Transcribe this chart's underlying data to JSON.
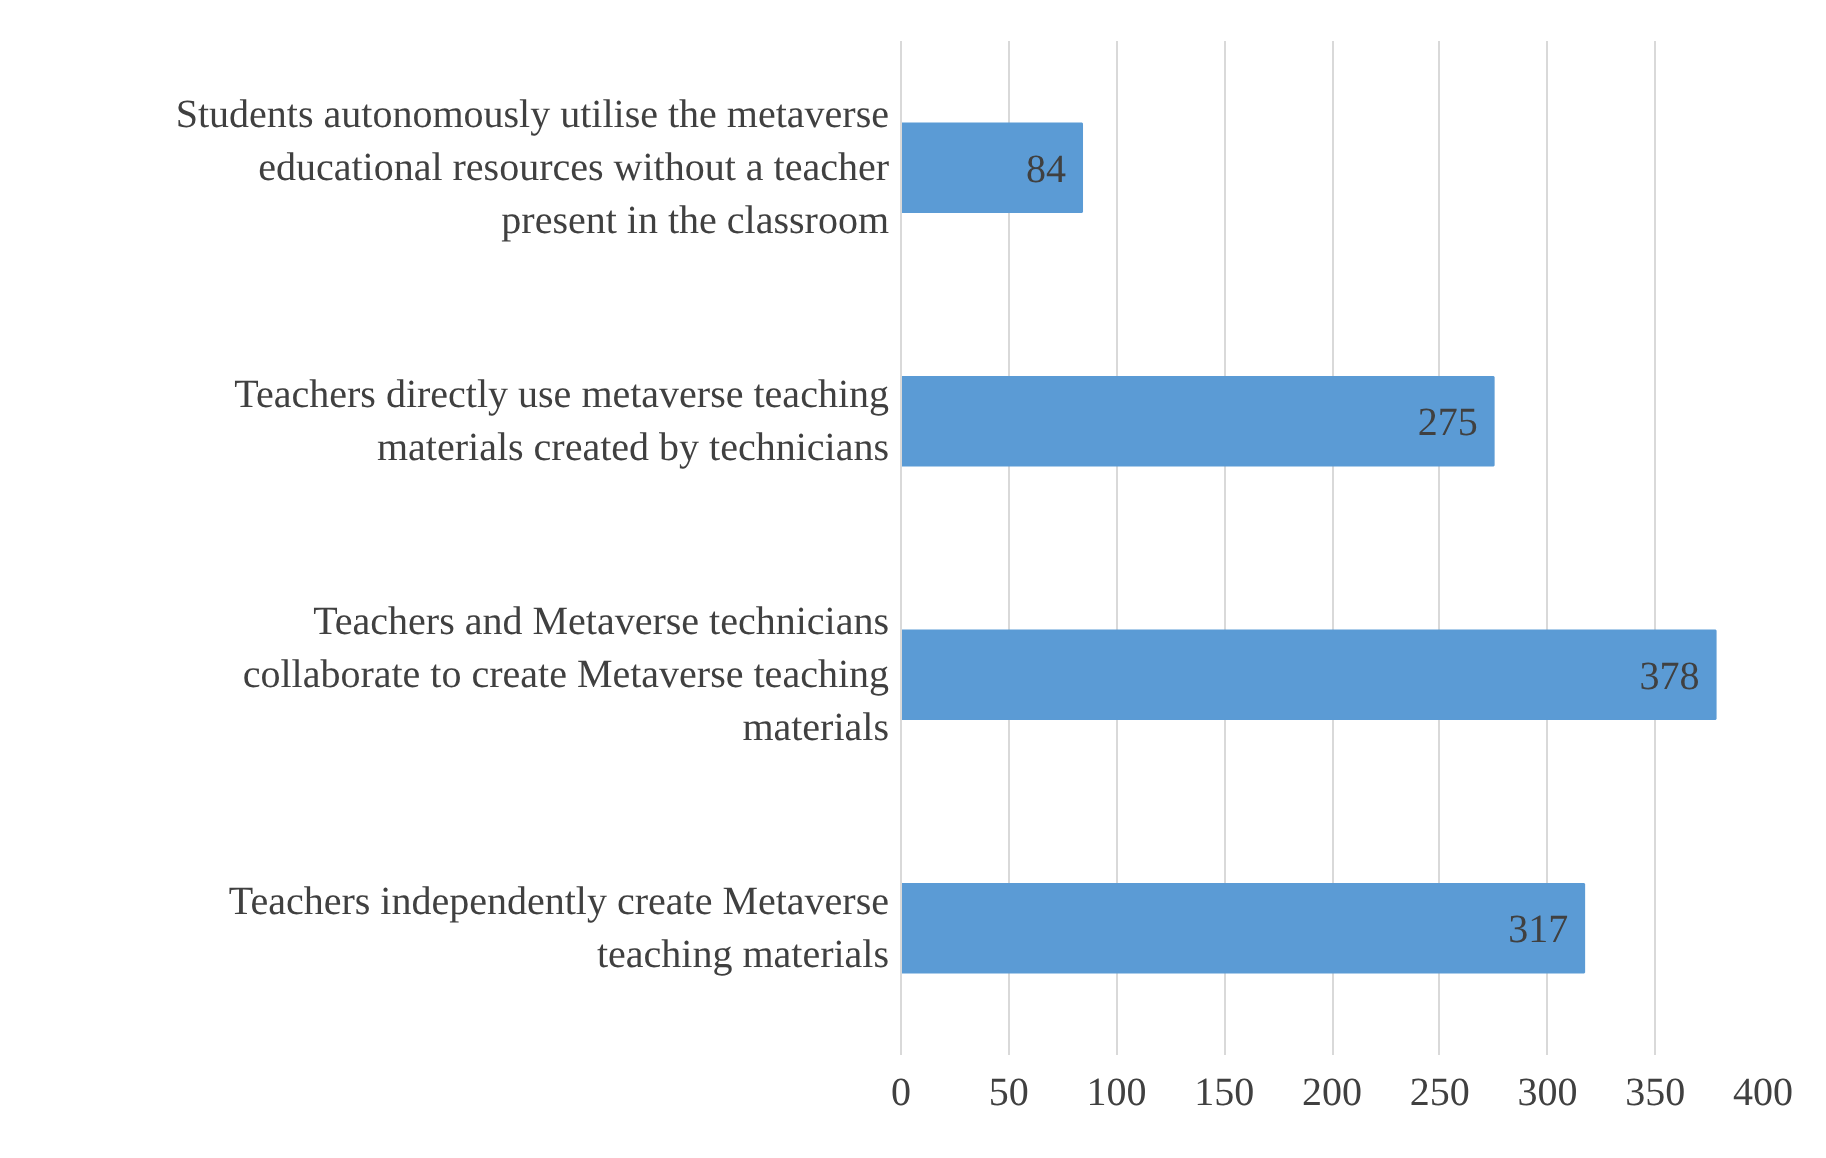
{
  "chart_data": {
    "type": "bar",
    "orientation": "horizontal",
    "categories": [
      "Students autonomously utilise the metaverse educational resources without a teacher present in the classroom",
      "Teachers directly use metaverse teaching materials created by technicians",
      "Teachers and Metaverse technicians collaborate to create Metaverse teaching materials",
      "Teachers independently create Metaverse teaching materials"
    ],
    "values": [
      84,
      275,
      378,
      317
    ],
    "color": "#5b9bd5",
    "xlim": [
      0,
      400
    ],
    "xticks": [
      0,
      50,
      100,
      150,
      200,
      250,
      300,
      350,
      400
    ],
    "grid": "x",
    "data_labels": true
  }
}
